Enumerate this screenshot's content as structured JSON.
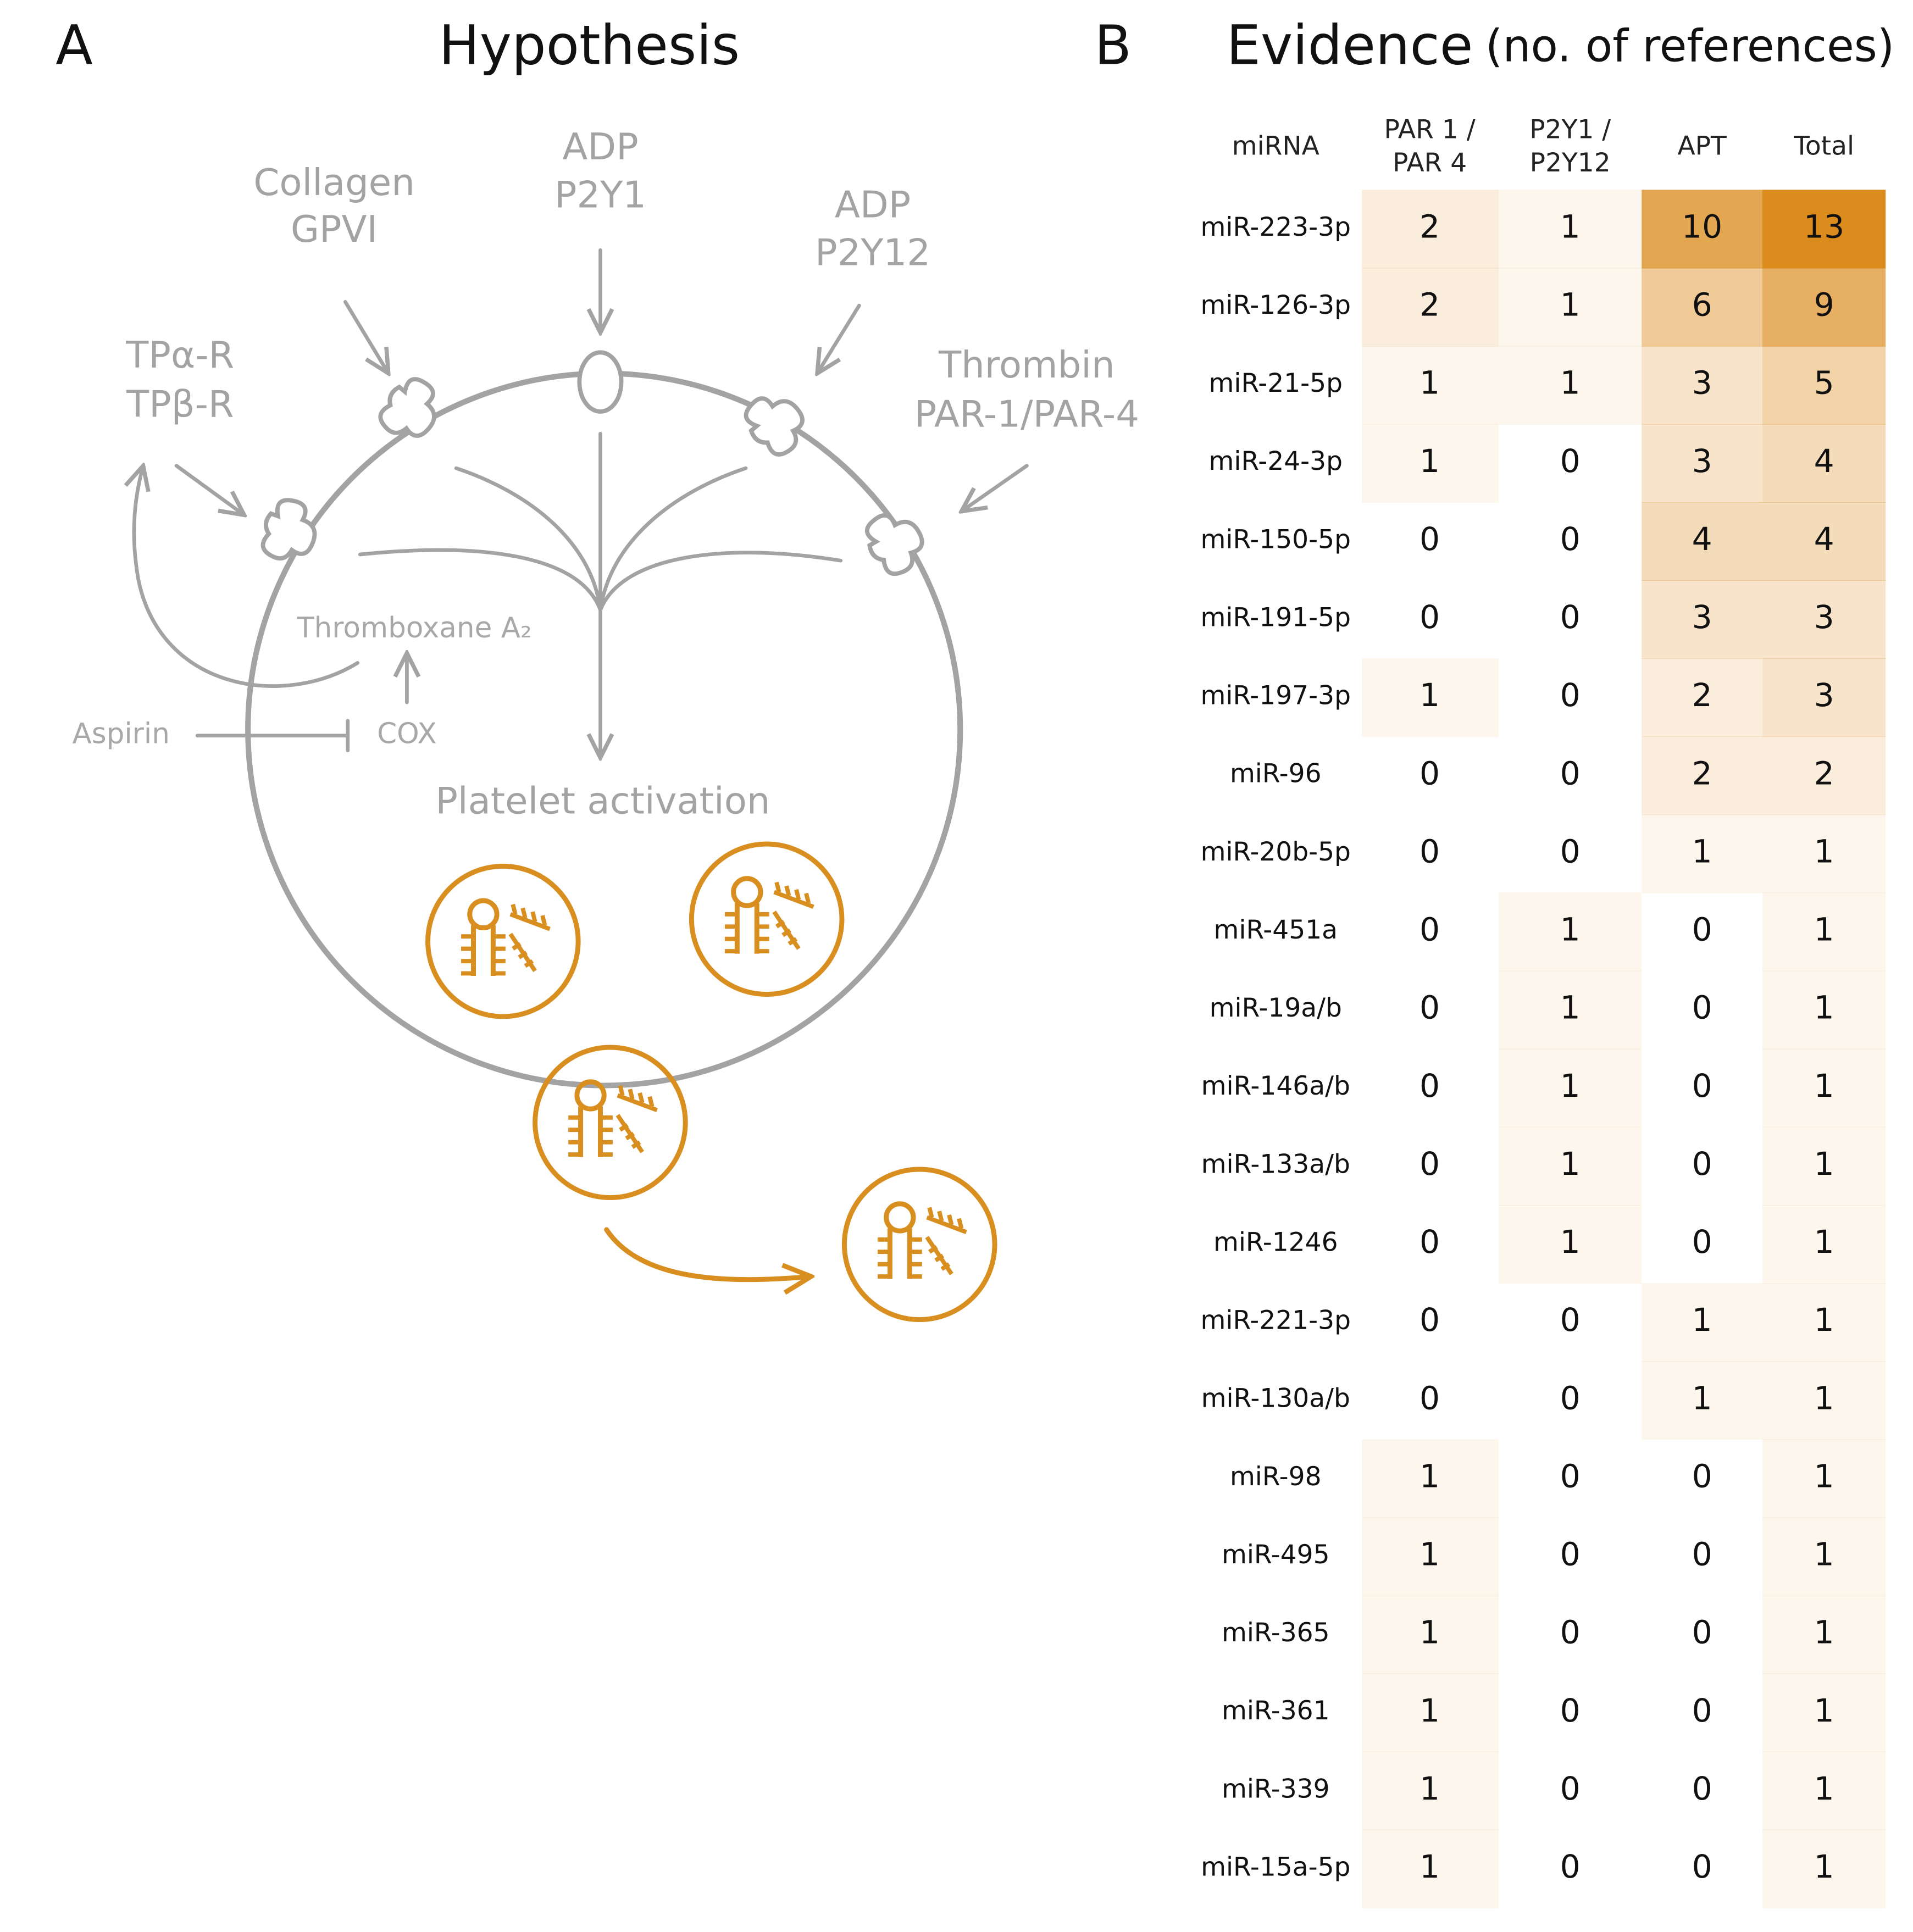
{
  "panel_a": {
    "label": "A",
    "title": "Hypothesis",
    "labels": {
      "collagen": [
        "Collagen",
        "GPVI"
      ],
      "adp_p2y1": [
        "ADP",
        "P2Y1"
      ],
      "adp_p2y12": [
        "ADP",
        "P2Y12"
      ],
      "tp": [
        "TPα-R",
        "TPβ-R"
      ],
      "thrombin": [
        "Thrombin",
        "PAR-1/PAR-4"
      ],
      "thromboxane": "Thromboxane A₂",
      "cox": "COX",
      "aspirin": "Aspirin",
      "activation": "Platelet activation"
    }
  },
  "panel_b": {
    "label": "B",
    "title": "Evidence",
    "subtitle": "(no. of references)",
    "table": {
      "header": [
        [
          "miRNA"
        ],
        [
          "PAR 1 /",
          "PAR 4"
        ],
        [
          "P2Y1 /",
          "P2Y12"
        ],
        [
          "APT"
        ],
        [
          "Total"
        ]
      ],
      "rows": [
        [
          "miR-223-3p",
          2,
          1,
          10,
          13
        ],
        [
          "miR-126-3p",
          2,
          1,
          6,
          9
        ],
        [
          "miR-21-5p",
          1,
          1,
          3,
          5
        ],
        [
          "miR-24-3p",
          1,
          0,
          3,
          4
        ],
        [
          "miR-150-5p",
          0,
          0,
          4,
          4
        ],
        [
          "miR-191-5p",
          0,
          0,
          3,
          3
        ],
        [
          "miR-197-3p",
          1,
          0,
          2,
          3
        ],
        [
          "miR-96",
          0,
          0,
          2,
          2
        ],
        [
          "miR-20b-5p",
          0,
          0,
          1,
          1
        ],
        [
          "miR-451a",
          0,
          1,
          0,
          1
        ],
        [
          "miR-19a/b",
          0,
          1,
          0,
          1
        ],
        [
          "miR-146a/b",
          0,
          1,
          0,
          1
        ],
        [
          "miR-133a/b",
          0,
          1,
          0,
          1
        ],
        [
          "miR-1246",
          0,
          1,
          0,
          1
        ],
        [
          "miR-221-3p",
          0,
          0,
          1,
          1
        ],
        [
          "miR-130a/b",
          0,
          0,
          1,
          1
        ],
        [
          "miR-98",
          1,
          0,
          0,
          1
        ],
        [
          "miR-495",
          1,
          0,
          0,
          1
        ],
        [
          "miR-365",
          1,
          0,
          0,
          1
        ],
        [
          "miR-361",
          1,
          0,
          0,
          1
        ],
        [
          "miR-339",
          1,
          0,
          0,
          1
        ],
        [
          "miR-15a-5p",
          1,
          0,
          0,
          1
        ]
      ]
    },
    "heat_color": "#dc8c1c"
  }
}
